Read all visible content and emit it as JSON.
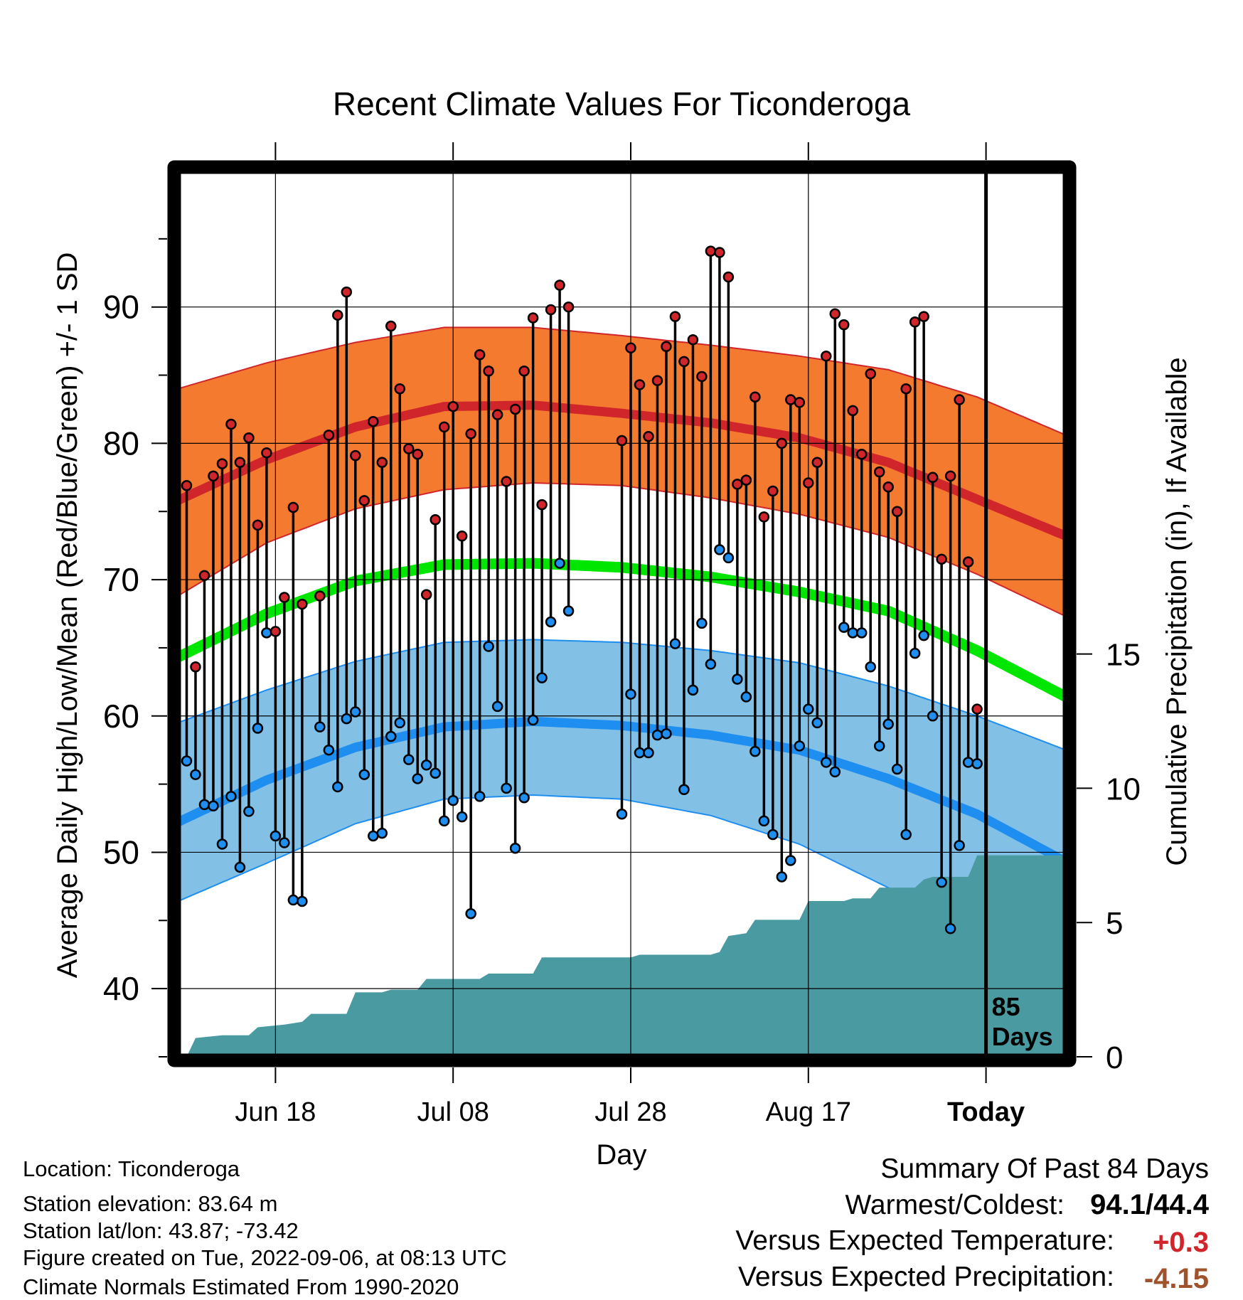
{
  "chart_data": {
    "type": "line",
    "title": "Recent Climate Values For Ticonderoga",
    "xlabel": "Day",
    "ylabel": "Average Daily High/Low/Mean (Red/Blue/Green) +/- 1 SD",
    "y2label": "Cumulative Precipitation (in), If Available",
    "ylim": [
      35,
      100
    ],
    "y2lim": [
      0,
      33
    ],
    "yticks": [
      40,
      50,
      60,
      70,
      80,
      90
    ],
    "y2ticks": [
      0,
      5,
      10,
      15
    ],
    "xlim": [
      -11,
      89
    ],
    "xticks": [
      {
        "day": 0,
        "label": "Jun 18"
      },
      {
        "day": 20,
        "label": "Jul 08"
      },
      {
        "day": 40,
        "label": "Jul 28"
      },
      {
        "day": 60,
        "label": "Aug 17"
      },
      {
        "day": 80,
        "label": "Today"
      }
    ],
    "today_marker": {
      "day": 80,
      "label_line1": "85",
      "label_line2": "Days"
    },
    "grid": true,
    "colors": {
      "high_band": "#f47a30",
      "high_line": "#d0262b",
      "low_band": "#83c0e6",
      "low_line": "#1e8ef0",
      "mean_line": "#00e600",
      "precip": "#4a9aa2",
      "obs_high_dot": "#d0262b",
      "obs_low_dot": "#1e8ef0",
      "positive": "#d0262b",
      "negative": "#a0522d"
    },
    "normals": {
      "high_mean_curve": [
        [
          -11,
          75.8
        ],
        [
          -1,
          78.8
        ],
        [
          9,
          81.2
        ],
        [
          19,
          82.7
        ],
        [
          29,
          82.8
        ],
        [
          39,
          82.2
        ],
        [
          49,
          81.5
        ],
        [
          59,
          80.4
        ],
        [
          69,
          78.6
        ],
        [
          79,
          75.9
        ],
        [
          89,
          73.2
        ]
      ],
      "high_sd_upper": [
        [
          -11,
          84.0
        ],
        [
          -1,
          85.9
        ],
        [
          9,
          87.4
        ],
        [
          19,
          88.5
        ],
        [
          29,
          88.5
        ],
        [
          39,
          87.9
        ],
        [
          49,
          87.2
        ],
        [
          59,
          86.4
        ],
        [
          69,
          85.4
        ],
        [
          79,
          83.4
        ],
        [
          89,
          80.6
        ]
      ],
      "high_sd_lower": [
        [
          -11,
          68.8
        ],
        [
          -1,
          72.7
        ],
        [
          9,
          75.2
        ],
        [
          19,
          76.6
        ],
        [
          29,
          77.1
        ],
        [
          39,
          76.9
        ],
        [
          49,
          76.0
        ],
        [
          59,
          74.8
        ],
        [
          69,
          73.1
        ],
        [
          79,
          70.4
        ],
        [
          89,
          67.3
        ]
      ],
      "mean_curve": [
        [
          -11,
          64.3
        ],
        [
          -1,
          67.5
        ],
        [
          9,
          69.9
        ],
        [
          19,
          71.1
        ],
        [
          29,
          71.2
        ],
        [
          39,
          70.9
        ],
        [
          49,
          70.2
        ],
        [
          59,
          69.1
        ],
        [
          69,
          67.7
        ],
        [
          79,
          64.8
        ],
        [
          89,
          61.4
        ]
      ],
      "low_mean_curve": [
        [
          -11,
          52.2
        ],
        [
          -1,
          55.3
        ],
        [
          9,
          57.7
        ],
        [
          19,
          59.2
        ],
        [
          29,
          59.6
        ],
        [
          39,
          59.3
        ],
        [
          49,
          58.6
        ],
        [
          59,
          57.5
        ],
        [
          69,
          55.4
        ],
        [
          79,
          52.8
        ],
        [
          89,
          49.3
        ]
      ],
      "low_sd_upper": [
        [
          -11,
          59.5
        ],
        [
          -1,
          61.9
        ],
        [
          9,
          64.0
        ],
        [
          19,
          65.4
        ],
        [
          29,
          65.6
        ],
        [
          39,
          65.4
        ],
        [
          49,
          64.8
        ],
        [
          59,
          63.9
        ],
        [
          69,
          62.2
        ],
        [
          79,
          60.0
        ],
        [
          89,
          57.5
        ]
      ],
      "low_sd_lower": [
        [
          -11,
          46.4
        ],
        [
          -1,
          49.2
        ],
        [
          9,
          52.1
        ],
        [
          19,
          53.9
        ],
        [
          29,
          54.2
        ],
        [
          39,
          53.9
        ],
        [
          49,
          52.7
        ],
        [
          59,
          50.6
        ],
        [
          69,
          47.4
        ],
        [
          79,
          44.7
        ],
        [
          89,
          43.7
        ]
      ]
    },
    "observations": [
      {
        "day": -10,
        "high": 76.9,
        "low": 56.7
      },
      {
        "day": -9,
        "high": 63.6,
        "low": 55.7
      },
      {
        "day": -8,
        "high": 70.3,
        "low": 53.5
      },
      {
        "day": -7,
        "high": 77.6,
        "low": 53.4
      },
      {
        "day": -6,
        "high": 78.5,
        "low": 50.6
      },
      {
        "day": -5,
        "high": 81.4,
        "low": 54.1
      },
      {
        "day": -4,
        "high": 78.6,
        "low": 48.9
      },
      {
        "day": -3,
        "high": 80.4,
        "low": 53.0
      },
      {
        "day": -2,
        "high": 74.0,
        "low": 59.1
      },
      {
        "day": -1,
        "high": 79.3,
        "low": 66.1
      },
      {
        "day": 0,
        "high": 66.2,
        "low": 51.2
      },
      {
        "day": 1,
        "high": 68.7,
        "low": 50.7
      },
      {
        "day": 2,
        "high": 75.3,
        "low": 46.5
      },
      {
        "day": 3,
        "high": 68.2,
        "low": 46.4
      },
      {
        "day": 5,
        "high": 68.8,
        "low": 59.2
      },
      {
        "day": 6,
        "high": 80.6,
        "low": 57.5
      },
      {
        "day": 7,
        "high": 89.4,
        "low": 54.8
      },
      {
        "day": 8,
        "high": 91.1,
        "low": 59.8
      },
      {
        "day": 9,
        "high": 79.1,
        "low": 60.3
      },
      {
        "day": 10,
        "high": 75.8,
        "low": 55.7
      },
      {
        "day": 11,
        "high": 81.6,
        "low": 51.2
      },
      {
        "day": 12,
        "high": 78.6,
        "low": 51.4
      },
      {
        "day": 13,
        "high": 88.6,
        "low": 58.5
      },
      {
        "day": 14,
        "high": 84.0,
        "low": 59.5
      },
      {
        "day": 15,
        "high": 79.6,
        "low": 56.8
      },
      {
        "day": 16,
        "high": 79.2,
        "low": 55.4
      },
      {
        "day": 17,
        "high": 68.9,
        "low": 56.4
      },
      {
        "day": 18,
        "high": 74.4,
        "low": 55.8
      },
      {
        "day": 19,
        "high": 81.2,
        "low": 52.3
      },
      {
        "day": 20,
        "high": 82.7,
        "low": 53.8
      },
      {
        "day": 21,
        "high": 73.2,
        "low": 52.6
      },
      {
        "day": 22,
        "high": 80.7,
        "low": 45.5
      },
      {
        "day": 23,
        "high": 86.5,
        "low": 54.1
      },
      {
        "day": 24,
        "high": 85.3,
        "low": 65.1
      },
      {
        "day": 25,
        "high": 82.1,
        "low": 60.7
      },
      {
        "day": 26,
        "high": 77.2,
        "low": 54.7
      },
      {
        "day": 27,
        "high": 82.5,
        "low": 50.3
      },
      {
        "day": 28,
        "high": 85.3,
        "low": 54.0
      },
      {
        "day": 29,
        "high": 89.2,
        "low": 59.7
      },
      {
        "day": 30,
        "high": 75.5,
        "low": 62.8
      },
      {
        "day": 31,
        "high": 89.8,
        "low": 66.9
      },
      {
        "day": 32,
        "high": 91.6,
        "low": 71.2
      },
      {
        "day": 33,
        "high": 90.0,
        "low": 67.7
      },
      {
        "day": 39,
        "high": 80.2,
        "low": 52.8
      },
      {
        "day": 40,
        "high": 87.0,
        "low": 61.6
      },
      {
        "day": 41,
        "high": 84.3,
        "low": 57.3
      },
      {
        "day": 42,
        "high": 80.5,
        "low": 57.3
      },
      {
        "day": 43,
        "high": 84.6,
        "low": 58.6
      },
      {
        "day": 44,
        "high": 87.1,
        "low": 58.7
      },
      {
        "day": 45,
        "high": 89.3,
        "low": 65.3
      },
      {
        "day": 46,
        "high": 86.0,
        "low": 54.6
      },
      {
        "day": 47,
        "high": 87.6,
        "low": 61.9
      },
      {
        "day": 48,
        "high": 84.9,
        "low": 66.8
      },
      {
        "day": 49,
        "high": 94.1,
        "low": 63.8
      },
      {
        "day": 50,
        "high": 94.0,
        "low": 72.2
      },
      {
        "day": 51,
        "high": 92.2,
        "low": 71.6
      },
      {
        "day": 52,
        "high": 77.0,
        "low": 62.7
      },
      {
        "day": 53,
        "high": 77.3,
        "low": 61.4
      },
      {
        "day": 54,
        "high": 83.4,
        "low": 57.4
      },
      {
        "day": 55,
        "high": 74.6,
        "low": 52.3
      },
      {
        "day": 56,
        "high": 76.5,
        "low": 51.3
      },
      {
        "day": 57,
        "high": 80.0,
        "low": 48.2
      },
      {
        "day": 58,
        "high": 83.2,
        "low": 49.4
      },
      {
        "day": 59,
        "high": 83.0,
        "low": 57.8
      },
      {
        "day": 60,
        "high": 77.1,
        "low": 60.5
      },
      {
        "day": 61,
        "high": 78.6,
        "low": 59.5
      },
      {
        "day": 62,
        "high": 86.4,
        "low": 56.6
      },
      {
        "day": 63,
        "high": 89.5,
        "low": 55.9
      },
      {
        "day": 64,
        "high": 88.7,
        "low": 66.5
      },
      {
        "day": 65,
        "high": 82.4,
        "low": 66.1
      },
      {
        "day": 66,
        "high": 79.2,
        "low": 66.1
      },
      {
        "day": 67,
        "high": 85.1,
        "low": 63.6
      },
      {
        "day": 68,
        "high": 77.9,
        "low": 57.8
      },
      {
        "day": 69,
        "high": 76.8,
        "low": 59.4
      },
      {
        "day": 70,
        "high": 75.0,
        "low": 56.1
      },
      {
        "day": 71,
        "high": 84.0,
        "low": 51.3
      },
      {
        "day": 72,
        "high": 88.9,
        "low": 64.6
      },
      {
        "day": 73,
        "high": 89.3,
        "low": 65.9
      },
      {
        "day": 74,
        "high": 77.5,
        "low": 60.0
      },
      {
        "day": 75,
        "high": 71.5,
        "low": 47.8
      },
      {
        "day": 76,
        "high": 77.6,
        "low": 44.4
      },
      {
        "day": 77,
        "high": 83.2,
        "low": 50.5
      },
      {
        "day": 78,
        "high": 71.3,
        "low": 56.6
      },
      {
        "day": 79,
        "high": 60.5,
        "low": 56.5
      }
    ],
    "cumulative_precip": [
      [
        -10,
        0.0
      ],
      [
        -9,
        0.7
      ],
      [
        -6,
        0.8
      ],
      [
        -3,
        0.8
      ],
      [
        -2,
        1.1
      ],
      [
        1,
        1.2
      ],
      [
        3,
        1.3
      ],
      [
        4,
        1.6
      ],
      [
        8,
        1.6
      ],
      [
        9,
        2.4
      ],
      [
        12,
        2.4
      ],
      [
        13,
        2.5
      ],
      [
        16,
        2.5
      ],
      [
        17,
        2.9
      ],
      [
        23,
        2.9
      ],
      [
        24,
        3.1
      ],
      [
        29,
        3.1
      ],
      [
        30,
        3.7
      ],
      [
        40,
        3.7
      ],
      [
        41,
        3.8
      ],
      [
        49,
        3.8
      ],
      [
        50,
        3.9
      ],
      [
        51,
        4.5
      ],
      [
        53,
        4.6
      ],
      [
        54,
        5.1
      ],
      [
        59,
        5.1
      ],
      [
        60,
        5.8
      ],
      [
        64,
        5.8
      ],
      [
        65,
        5.9
      ],
      [
        67,
        5.9
      ],
      [
        68,
        6.3
      ],
      [
        72,
        6.3
      ],
      [
        73,
        6.6
      ],
      [
        74,
        6.7
      ],
      [
        78,
        6.7
      ],
      [
        79,
        7.5
      ],
      [
        89,
        7.5
      ]
    ]
  },
  "footer": {
    "location": "Location: Ticonderoga",
    "elevation": "Station elevation: 83.64 m",
    "latlon": "Station lat/lon: 43.87; -73.42",
    "created": "Figure created on Tue, 2022-09-06, at 08:13 UTC",
    "normals": "Climate Normals Estimated From 1990-2020"
  },
  "summary": {
    "heading": "Summary Of Past 84 Days",
    "warmest_coldest_label": "Warmest/Coldest:",
    "warmest": "94.1",
    "slash": "/",
    "coldest": "44.4",
    "temp_label": "Versus Expected Temperature:",
    "temp_value": "+0.3",
    "precip_label": "Versus Expected Precipitation:",
    "precip_value": "-4.15"
  }
}
